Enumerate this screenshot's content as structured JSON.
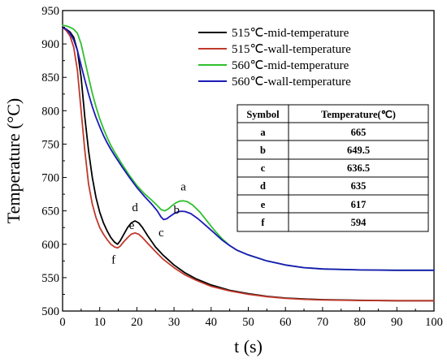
{
  "chart_data": {
    "type": "line",
    "xlabel": "t (s)",
    "ylabel": "Temperature (°C)",
    "xlim": [
      0,
      100
    ],
    "ylim": [
      500,
      950
    ],
    "xticks": [
      0,
      10,
      20,
      30,
      40,
      50,
      60,
      70,
      80,
      90,
      100
    ],
    "yticks": [
      500,
      550,
      600,
      650,
      700,
      750,
      800,
      850,
      900,
      950
    ],
    "grid": false,
    "legend_position": "top-right",
    "series": [
      {
        "name": "515℃-mid-temperature",
        "color": "#000000",
        "points": [
          [
            0,
            925
          ],
          [
            1,
            922
          ],
          [
            2,
            918
          ],
          [
            3,
            910
          ],
          [
            4,
            890
          ],
          [
            5,
            850
          ],
          [
            6,
            790
          ],
          [
            7,
            740
          ],
          [
            8,
            700
          ],
          [
            9,
            670
          ],
          [
            10,
            648
          ],
          [
            11,
            632
          ],
          [
            12,
            620
          ],
          [
            13,
            610
          ],
          [
            14,
            603
          ],
          [
            14.8,
            600
          ],
          [
            15.5,
            605
          ],
          [
            16.5,
            615
          ],
          [
            17.5,
            625
          ],
          [
            18.5,
            632
          ],
          [
            19.5,
            635
          ],
          [
            20.5,
            632
          ],
          [
            21.5,
            625
          ],
          [
            23,
            612
          ],
          [
            25,
            596
          ],
          [
            27,
            584
          ],
          [
            30,
            569
          ],
          [
            33,
            557
          ],
          [
            36,
            548
          ],
          [
            40,
            539
          ],
          [
            45,
            531
          ],
          [
            50,
            526
          ],
          [
            55,
            522
          ],
          [
            60,
            519.5
          ],
          [
            65,
            518
          ],
          [
            70,
            517
          ],
          [
            80,
            516
          ],
          [
            90,
            515.5
          ],
          [
            100,
            515.5
          ]
        ]
      },
      {
        "name": "515℃-wall-temperature",
        "color": "#c0392b",
        "points": [
          [
            0,
            925
          ],
          [
            1,
            920
          ],
          [
            2,
            912
          ],
          [
            3,
            895
          ],
          [
            4,
            860
          ],
          [
            5,
            800
          ],
          [
            6,
            740
          ],
          [
            7,
            690
          ],
          [
            8,
            660
          ],
          [
            9,
            640
          ],
          [
            10,
            625
          ],
          [
            11,
            615
          ],
          [
            12,
            607
          ],
          [
            13,
            600
          ],
          [
            14,
            596
          ],
          [
            14.8,
            594.5
          ],
          [
            15.5,
            597
          ],
          [
            16.5,
            604
          ],
          [
            17.5,
            610
          ],
          [
            18.5,
            615
          ],
          [
            19.5,
            617
          ],
          [
            20.5,
            615
          ],
          [
            21.5,
            610
          ],
          [
            23,
            601
          ],
          [
            25,
            589
          ],
          [
            27,
            578
          ],
          [
            30,
            565
          ],
          [
            33,
            554
          ],
          [
            36,
            546
          ],
          [
            40,
            537
          ],
          [
            45,
            530
          ],
          [
            50,
            525
          ],
          [
            55,
            521.5
          ],
          [
            60,
            519
          ],
          [
            65,
            517.5
          ],
          [
            70,
            516.5
          ],
          [
            80,
            515.8
          ],
          [
            90,
            515.5
          ],
          [
            100,
            515.5
          ]
        ]
      },
      {
        "name": "560℃-mid-temperature",
        "color": "#2fc02f",
        "points": [
          [
            0,
            928
          ],
          [
            1,
            927
          ],
          [
            2,
            925
          ],
          [
            3,
            922
          ],
          [
            4,
            916
          ],
          [
            5,
            900
          ],
          [
            6,
            875
          ],
          [
            7,
            850
          ],
          [
            8,
            826
          ],
          [
            9,
            806
          ],
          [
            10,
            788
          ],
          [
            11,
            773
          ],
          [
            12,
            760
          ],
          [
            13,
            748
          ],
          [
            14,
            738
          ],
          [
            16,
            720
          ],
          [
            18,
            703
          ],
          [
            20,
            688
          ],
          [
            22,
            676
          ],
          [
            24,
            666
          ],
          [
            25.5,
            658
          ],
          [
            26.5,
            652
          ],
          [
            27.5,
            650
          ],
          [
            28.5,
            653
          ],
          [
            29.5,
            658
          ],
          [
            30.5,
            662
          ],
          [
            31.5,
            664.5
          ],
          [
            32.5,
            665
          ],
          [
            33.5,
            664
          ],
          [
            35,
            659
          ],
          [
            37,
            648
          ],
          [
            39,
            634
          ],
          [
            41,
            620
          ],
          [
            43,
            608
          ],
          [
            45,
            598
          ],
          [
            47,
            591
          ],
          [
            50,
            584
          ],
          [
            55,
            575
          ],
          [
            60,
            569
          ],
          [
            65,
            565
          ],
          [
            70,
            563
          ],
          [
            80,
            561.5
          ],
          [
            90,
            561
          ],
          [
            100,
            561
          ]
        ]
      },
      {
        "name": "560℃-wall-temperature",
        "color": "#1a1ab8",
        "points": [
          [
            0,
            925
          ],
          [
            1,
            922
          ],
          [
            2,
            916
          ],
          [
            3,
            906
          ],
          [
            4,
            890
          ],
          [
            5,
            868
          ],
          [
            6,
            846
          ],
          [
            7,
            825
          ],
          [
            8,
            806
          ],
          [
            9,
            790
          ],
          [
            10,
            776
          ],
          [
            11,
            763
          ],
          [
            12,
            752
          ],
          [
            13,
            742
          ],
          [
            14,
            733
          ],
          [
            16,
            716
          ],
          [
            18,
            700
          ],
          [
            20,
            685
          ],
          [
            22,
            672
          ],
          [
            24,
            660
          ],
          [
            25.5,
            650
          ],
          [
            26.5,
            641
          ],
          [
            27.2,
            637
          ],
          [
            28,
            638
          ],
          [
            29,
            642
          ],
          [
            30,
            646
          ],
          [
            31,
            648.5
          ],
          [
            32,
            649.5
          ],
          [
            33,
            649
          ],
          [
            34.5,
            646
          ],
          [
            36.5,
            638
          ],
          [
            39,
            626
          ],
          [
            41,
            616
          ],
          [
            43,
            606
          ],
          [
            45,
            598
          ],
          [
            47,
            591
          ],
          [
            50,
            584
          ],
          [
            55,
            575
          ],
          [
            60,
            569
          ],
          [
            65,
            565
          ],
          [
            70,
            563
          ],
          [
            80,
            561.5
          ],
          [
            90,
            561
          ],
          [
            100,
            561
          ]
        ]
      }
    ],
    "point_labels": [
      {
        "label": "a",
        "x": 32.5,
        "y": 665
      },
      {
        "label": "b",
        "x": 32,
        "y": 649.5
      },
      {
        "label": "c",
        "x": 27.2,
        "y": 636.5
      },
      {
        "label": "d",
        "x": 19.5,
        "y": 635
      },
      {
        "label": "e",
        "x": 19.5,
        "y": 617
      },
      {
        "label": "f",
        "x": 14.8,
        "y": 594
      }
    ],
    "table": {
      "headers": [
        "Symbol",
        "Temperature(℃)"
      ],
      "rows": [
        [
          "a",
          "665"
        ],
        [
          "b",
          "649.5"
        ],
        [
          "c",
          "636.5"
        ],
        [
          "d",
          "635"
        ],
        [
          "e",
          "617"
        ],
        [
          "f",
          "594"
        ]
      ]
    }
  }
}
